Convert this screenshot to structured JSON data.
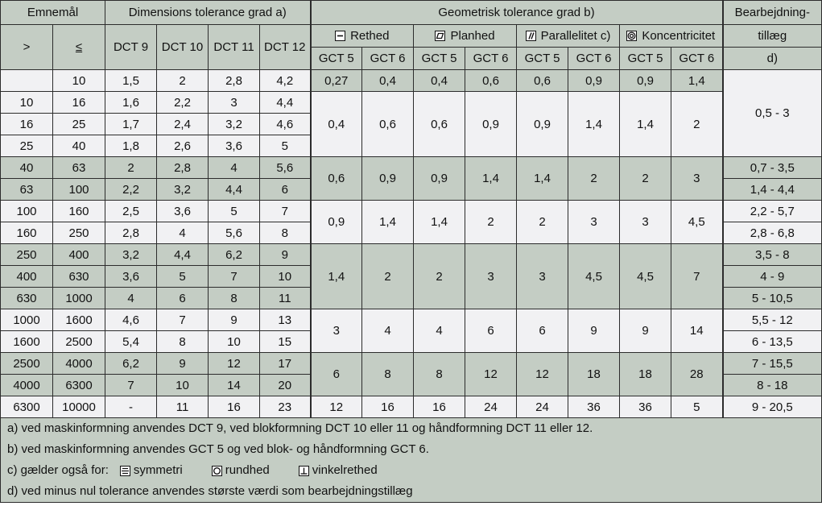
{
  "header": {
    "emnemaal": "Emnemål",
    "gt": ">",
    "lte": "≤",
    "dim_title": "Dimensions tolerance grad a)",
    "dct": [
      "DCT 9",
      "DCT 10",
      "DCT 11",
      "DCT 12"
    ],
    "geo_title": "Geometrisk tolerance grad b)",
    "geo_groups": [
      {
        "label": "Rethed",
        "icon": "straightness-icon"
      },
      {
        "label": "Planhed",
        "icon": "flatness-icon"
      },
      {
        "label": "Parallelitet c)",
        "icon": "parallelism-icon"
      },
      {
        "label": "Koncentricitet",
        "icon": "concentricity-icon"
      }
    ],
    "gct": [
      "GCT 5",
      "GCT 6",
      "GCT 5",
      "GCT 6",
      "GCT 5",
      "GCT 6",
      "GCT 5",
      "GCT 6"
    ],
    "bearb_1": "Bearbejdning-",
    "bearb_2": "tillæg",
    "bearb_3": "d)"
  },
  "rows": [
    {
      "from": "",
      "to": "10",
      "dct": [
        "1,5",
        "2",
        "2,8",
        "4,2"
      ],
      "shade": "w"
    },
    {
      "from": "10",
      "to": "16",
      "dct": [
        "1,6",
        "2,2",
        "3",
        "4,4"
      ],
      "shade": "w"
    },
    {
      "from": "16",
      "to": "25",
      "dct": [
        "1,7",
        "2,4",
        "3,2",
        "4,6"
      ],
      "shade": "w"
    },
    {
      "from": "25",
      "to": "40",
      "dct": [
        "1,8",
        "2,6",
        "3,6",
        "5"
      ],
      "shade": "w"
    },
    {
      "from": "40",
      "to": "63",
      "dct": [
        "2",
        "2,8",
        "4",
        "5,6"
      ],
      "shade": "g"
    },
    {
      "from": "63",
      "to": "100",
      "dct": [
        "2,2",
        "3,2",
        "4,4",
        "6"
      ],
      "shade": "g"
    },
    {
      "from": "100",
      "to": "160",
      "dct": [
        "2,5",
        "3,6",
        "5",
        "7"
      ],
      "shade": "w"
    },
    {
      "from": "160",
      "to": "250",
      "dct": [
        "2,8",
        "4",
        "5,6",
        "8"
      ],
      "shade": "w"
    },
    {
      "from": "250",
      "to": "400",
      "dct": [
        "3,2",
        "4,4",
        "6,2",
        "9"
      ],
      "shade": "g"
    },
    {
      "from": "400",
      "to": "630",
      "dct": [
        "3,6",
        "5",
        "7",
        "10"
      ],
      "shade": "g"
    },
    {
      "from": "630",
      "to": "1000",
      "dct": [
        "4",
        "6",
        "8",
        "11"
      ],
      "shade": "g"
    },
    {
      "from": "1000",
      "to": "1600",
      "dct": [
        "4,6",
        "7",
        "9",
        "13"
      ],
      "shade": "w"
    },
    {
      "from": "1600",
      "to": "2500",
      "dct": [
        "5,4",
        "8",
        "10",
        "15"
      ],
      "shade": "w"
    },
    {
      "from": "2500",
      "to": "4000",
      "dct": [
        "6,2",
        "9",
        "12",
        "17"
      ],
      "shade": "g"
    },
    {
      "from": "4000",
      "to": "6300",
      "dct": [
        "7",
        "10",
        "14",
        "20"
      ],
      "shade": "g"
    },
    {
      "from": "6300",
      "to": "10000",
      "dct": [
        "-",
        "11",
        "16",
        "23"
      ],
      "shade": "w"
    }
  ],
  "geo_blocks": [
    {
      "rows": 1,
      "shade": "g",
      "values": [
        "0,27",
        "0,4",
        "0,4",
        "0,6",
        "0,6",
        "0,9",
        "0,9",
        "1,4"
      ]
    },
    {
      "rows": 3,
      "shade": "w",
      "values": [
        "0,4",
        "0,6",
        "0,6",
        "0,9",
        "0,9",
        "1,4",
        "1,4",
        "2"
      ]
    },
    {
      "rows": 2,
      "shade": "g",
      "values": [
        "0,6",
        "0,9",
        "0,9",
        "1,4",
        "1,4",
        "2",
        "2",
        "3"
      ]
    },
    {
      "rows": 2,
      "shade": "w",
      "values": [
        "0,9",
        "1,4",
        "1,4",
        "2",
        "2",
        "3",
        "3",
        "4,5"
      ]
    },
    {
      "rows": 3,
      "shade": "g",
      "values": [
        "1,4",
        "2",
        "2",
        "3",
        "3",
        "4,5",
        "4,5",
        "7"
      ]
    },
    {
      "rows": 2,
      "shade": "w",
      "values": [
        "3",
        "4",
        "4",
        "6",
        "6",
        "9",
        "9",
        "14"
      ]
    },
    {
      "rows": 2,
      "shade": "g",
      "values": [
        "6",
        "8",
        "8",
        "12",
        "12",
        "18",
        "18",
        "28"
      ]
    },
    {
      "rows": 1,
      "shade": "w",
      "values": [
        "12",
        "16",
        "16",
        "24",
        "24",
        "36",
        "36",
        "5"
      ]
    }
  ],
  "bearb": [
    {
      "rows": 4,
      "shade": "w",
      "value": "0,5 - 3"
    },
    {
      "rows": 1,
      "shade": "g",
      "value": "0,7 - 3,5"
    },
    {
      "rows": 1,
      "shade": "g",
      "value": "1,4 - 4,4"
    },
    {
      "rows": 1,
      "shade": "w",
      "value": "2,2 - 5,7"
    },
    {
      "rows": 1,
      "shade": "w",
      "value": "2,8 - 6,8"
    },
    {
      "rows": 1,
      "shade": "g",
      "value": "3,5 - 8"
    },
    {
      "rows": 1,
      "shade": "g",
      "value": "4 - 9"
    },
    {
      "rows": 1,
      "shade": "g",
      "value": "5 - 10,5"
    },
    {
      "rows": 1,
      "shade": "w",
      "value": "5,5 - 12"
    },
    {
      "rows": 1,
      "shade": "w",
      "value": "6 - 13,5"
    },
    {
      "rows": 1,
      "shade": "g",
      "value": "7 - 15,5"
    },
    {
      "rows": 1,
      "shade": "g",
      "value": "8 - 18"
    },
    {
      "rows": 1,
      "shade": "w",
      "value": "9 - 20,5"
    }
  ],
  "footnotes": {
    "a": "a) ved maskinformning anvendes DCT 9, ved blokformning DCT 10 eller 11 og håndformning DCT 11 eller 12.",
    "b": "b) ved maskinformning anvendes GCT 5 og ved blok- og håndformning GCT 6.",
    "c_prefix": "c) gælder også for:",
    "c_items": [
      {
        "label": "symmetri",
        "icon": "symmetry-icon"
      },
      {
        "label": "rundhed",
        "icon": "roundness-icon"
      },
      {
        "label": "vinkelrethed",
        "icon": "perpendicularity-icon"
      }
    ],
    "d": "d) ved minus nul tolerance anvendes største værdi som bearbejdningstillæg"
  },
  "colors": {
    "shaded": "#c4cdc4",
    "light": "#f1f1f3",
    "border": "#2c2c2c"
  }
}
